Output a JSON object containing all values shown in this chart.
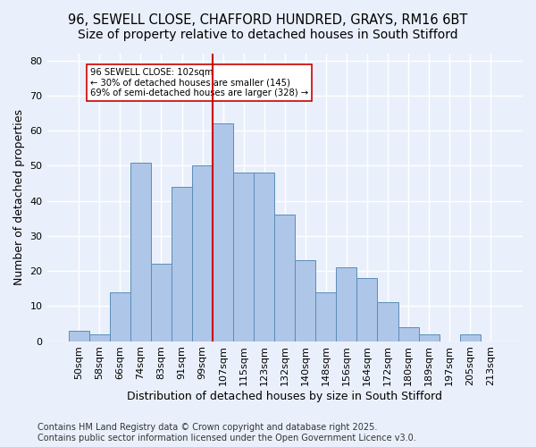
{
  "title_line1": "96, SEWELL CLOSE, CHAFFORD HUNDRED, GRAYS, RM16 6BT",
  "title_line2": "Size of property relative to detached houses in South Stifford",
  "xlabel": "Distribution of detached houses by size in South Stifford",
  "ylabel": "Number of detached properties",
  "footer": "Contains HM Land Registry data © Crown copyright and database right 2025.\nContains public sector information licensed under the Open Government Licence v3.0.",
  "bar_labels": [
    "50sqm",
    "58sqm",
    "66sqm",
    "74sqm",
    "83sqm",
    "91sqm",
    "99sqm",
    "107sqm",
    "115sqm",
    "123sqm",
    "132sqm",
    "140sqm",
    "148sqm",
    "156sqm",
    "164sqm",
    "172sqm",
    "180sqm",
    "189sqm",
    "197sqm",
    "205sqm",
    "213sqm"
  ],
  "bar_values": [
    3,
    2,
    14,
    51,
    22,
    44,
    50,
    62,
    48,
    48,
    36,
    23,
    14,
    21,
    18,
    11,
    4,
    2,
    0,
    2,
    0
  ],
  "bar_color": "#aec6e8",
  "bar_edge_color": "#5b8db8",
  "vline_x": 6.5,
  "vline_color": "#cc0000",
  "annotation_text": "96 SEWELL CLOSE: 102sqm\n← 30% of detached houses are smaller (145)\n69% of semi-detached houses are larger (328) →",
  "annotation_box_color": "#ffffff",
  "annotation_box_edge": "#cc0000",
  "ylim": [
    0,
    82
  ],
  "yticks": [
    0,
    10,
    20,
    30,
    40,
    50,
    60,
    70,
    80
  ],
  "background_color": "#eaf0fb",
  "grid_color": "#ffffff",
  "title_fontsize": 10.5,
  "axis_label_fontsize": 9,
  "tick_fontsize": 8,
  "footer_fontsize": 7
}
